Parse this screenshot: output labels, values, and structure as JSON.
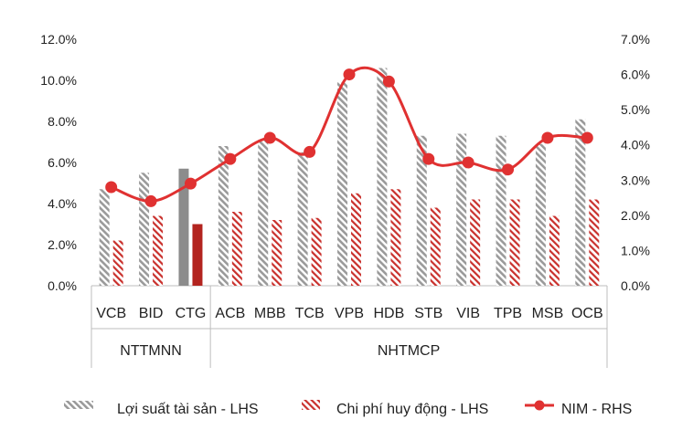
{
  "chart_data": {
    "type": "bar",
    "categories": [
      "VCB",
      "BID",
      "CTG",
      "ACB",
      "MBB",
      "TCB",
      "VPB",
      "HDB",
      "STB",
      "VIB",
      "TPB",
      "MSB",
      "OCB"
    ],
    "groups": [
      {
        "label": "NTTMNN",
        "categories": [
          "VCB",
          "BID",
          "CTG"
        ]
      },
      {
        "label": "NHTMCP",
        "categories": [
          "ACB",
          "MBB",
          "TCB",
          "VPB",
          "HDB",
          "STB",
          "VIB",
          "TPB",
          "MSB",
          "OCB"
        ]
      }
    ],
    "left_axis": {
      "ylim": [
        0,
        12
      ],
      "ticks": [
        "0.0%",
        "2.0%",
        "4.0%",
        "6.0%",
        "8.0%",
        "10.0%",
        "12.0%"
      ]
    },
    "right_axis": {
      "ylim": [
        0,
        7
      ],
      "ticks": [
        "0.0%",
        "1.0%",
        "2.0%",
        "3.0%",
        "4.0%",
        "5.0%",
        "6.0%",
        "7.0%"
      ]
    },
    "series": [
      {
        "name": "Lợi suất tài sản - LHS",
        "type": "bar",
        "axis": "left",
        "color": "#9a9a9a",
        "values": [
          4.7,
          5.5,
          5.7,
          6.8,
          7.1,
          6.5,
          9.9,
          10.6,
          7.3,
          7.4,
          7.3,
          6.9,
          8.1
        ]
      },
      {
        "name": "Chi phí huy động - LHS",
        "type": "bar",
        "axis": "left",
        "color": "#c0392b",
        "values": [
          2.2,
          3.4,
          3.0,
          3.6,
          3.2,
          3.3,
          4.5,
          4.7,
          3.8,
          4.2,
          4.2,
          3.4,
          4.2
        ]
      },
      {
        "name": "NIM - RHS",
        "type": "line",
        "axis": "right",
        "color": "#e03131",
        "values": [
          2.8,
          2.4,
          2.9,
          3.6,
          4.2,
          3.8,
          6.0,
          5.8,
          3.6,
          3.5,
          3.3,
          4.2,
          4.2
        ]
      }
    ],
    "highlight_category": "CTG",
    "legend_position": "bottom",
    "grid": false
  },
  "legend": {
    "item1": "Lợi suất tài sản - LHS",
    "item2": "Chi phí huy động - LHS",
    "item3": "NIM - RHS"
  }
}
